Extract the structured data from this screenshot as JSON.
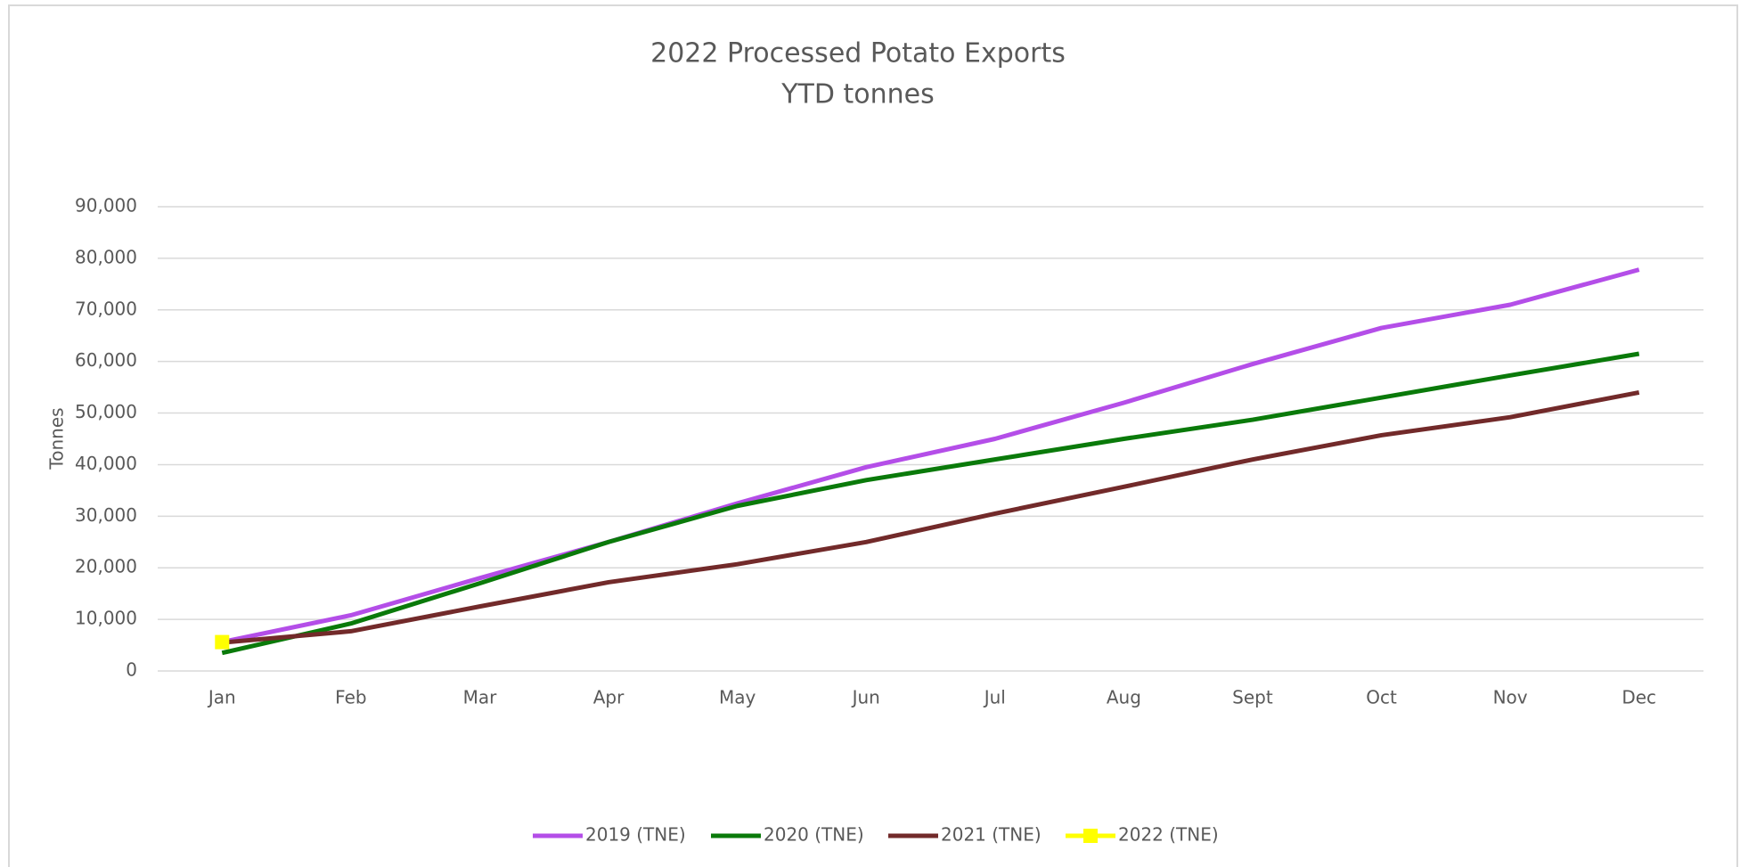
{
  "chart_data": {
    "type": "line",
    "title": "2022 Processed Potato Exports",
    "subtitle": "YTD tonnes",
    "y_label": "Tonnes",
    "categories": [
      "Jan",
      "Feb",
      "Mar",
      "Apr",
      "May",
      "Jun",
      "Jul",
      "Aug",
      "Sept",
      "Oct",
      "Nov",
      "Dec"
    ],
    "series": [
      {
        "name": "2019 (TNE)",
        "color": "#b44ee8",
        "values": [
          5600,
          10800,
          18000,
          25000,
          32500,
          39500,
          45000,
          52000,
          59500,
          66500,
          71000,
          77800
        ]
      },
      {
        "name": "2020 (TNE)",
        "color": "#0a7a0a",
        "values": [
          3500,
          9200,
          17000,
          25000,
          32000,
          37000,
          41000,
          45000,
          48700,
          53000,
          57300,
          61500
        ]
      },
      {
        "name": "2021 (TNE)",
        "color": "#722a2a",
        "values": [
          5500,
          7700,
          12500,
          17200,
          20700,
          25000,
          30500,
          35700,
          41000,
          45700,
          49200,
          54000
        ]
      },
      {
        "name": "2022 (TNE)",
        "color": "#ffff00",
        "marker": "square",
        "values": [
          5600,
          null,
          null,
          null,
          null,
          null,
          null,
          null,
          null,
          null,
          null,
          null
        ]
      }
    ],
    "ylim": [
      0,
      90000
    ],
    "yticks": [
      0,
      {
        "value": 10000,
        "label": "10,000"
      },
      {
        "value": 20000,
        "label": "20,000"
      },
      {
        "value": 30000,
        "label": "30,000"
      },
      {
        "value": 40000,
        "label": "40,000"
      },
      {
        "value": 50000,
        "label": "50,000"
      },
      {
        "value": 60000,
        "label": "60,000"
      },
      {
        "value": 70000,
        "label": "70,000"
      },
      {
        "value": 80000,
        "label": "80,000"
      },
      {
        "value": 90000,
        "label": "90,000"
      }
    ],
    "grid": true,
    "legend": "bottom"
  }
}
